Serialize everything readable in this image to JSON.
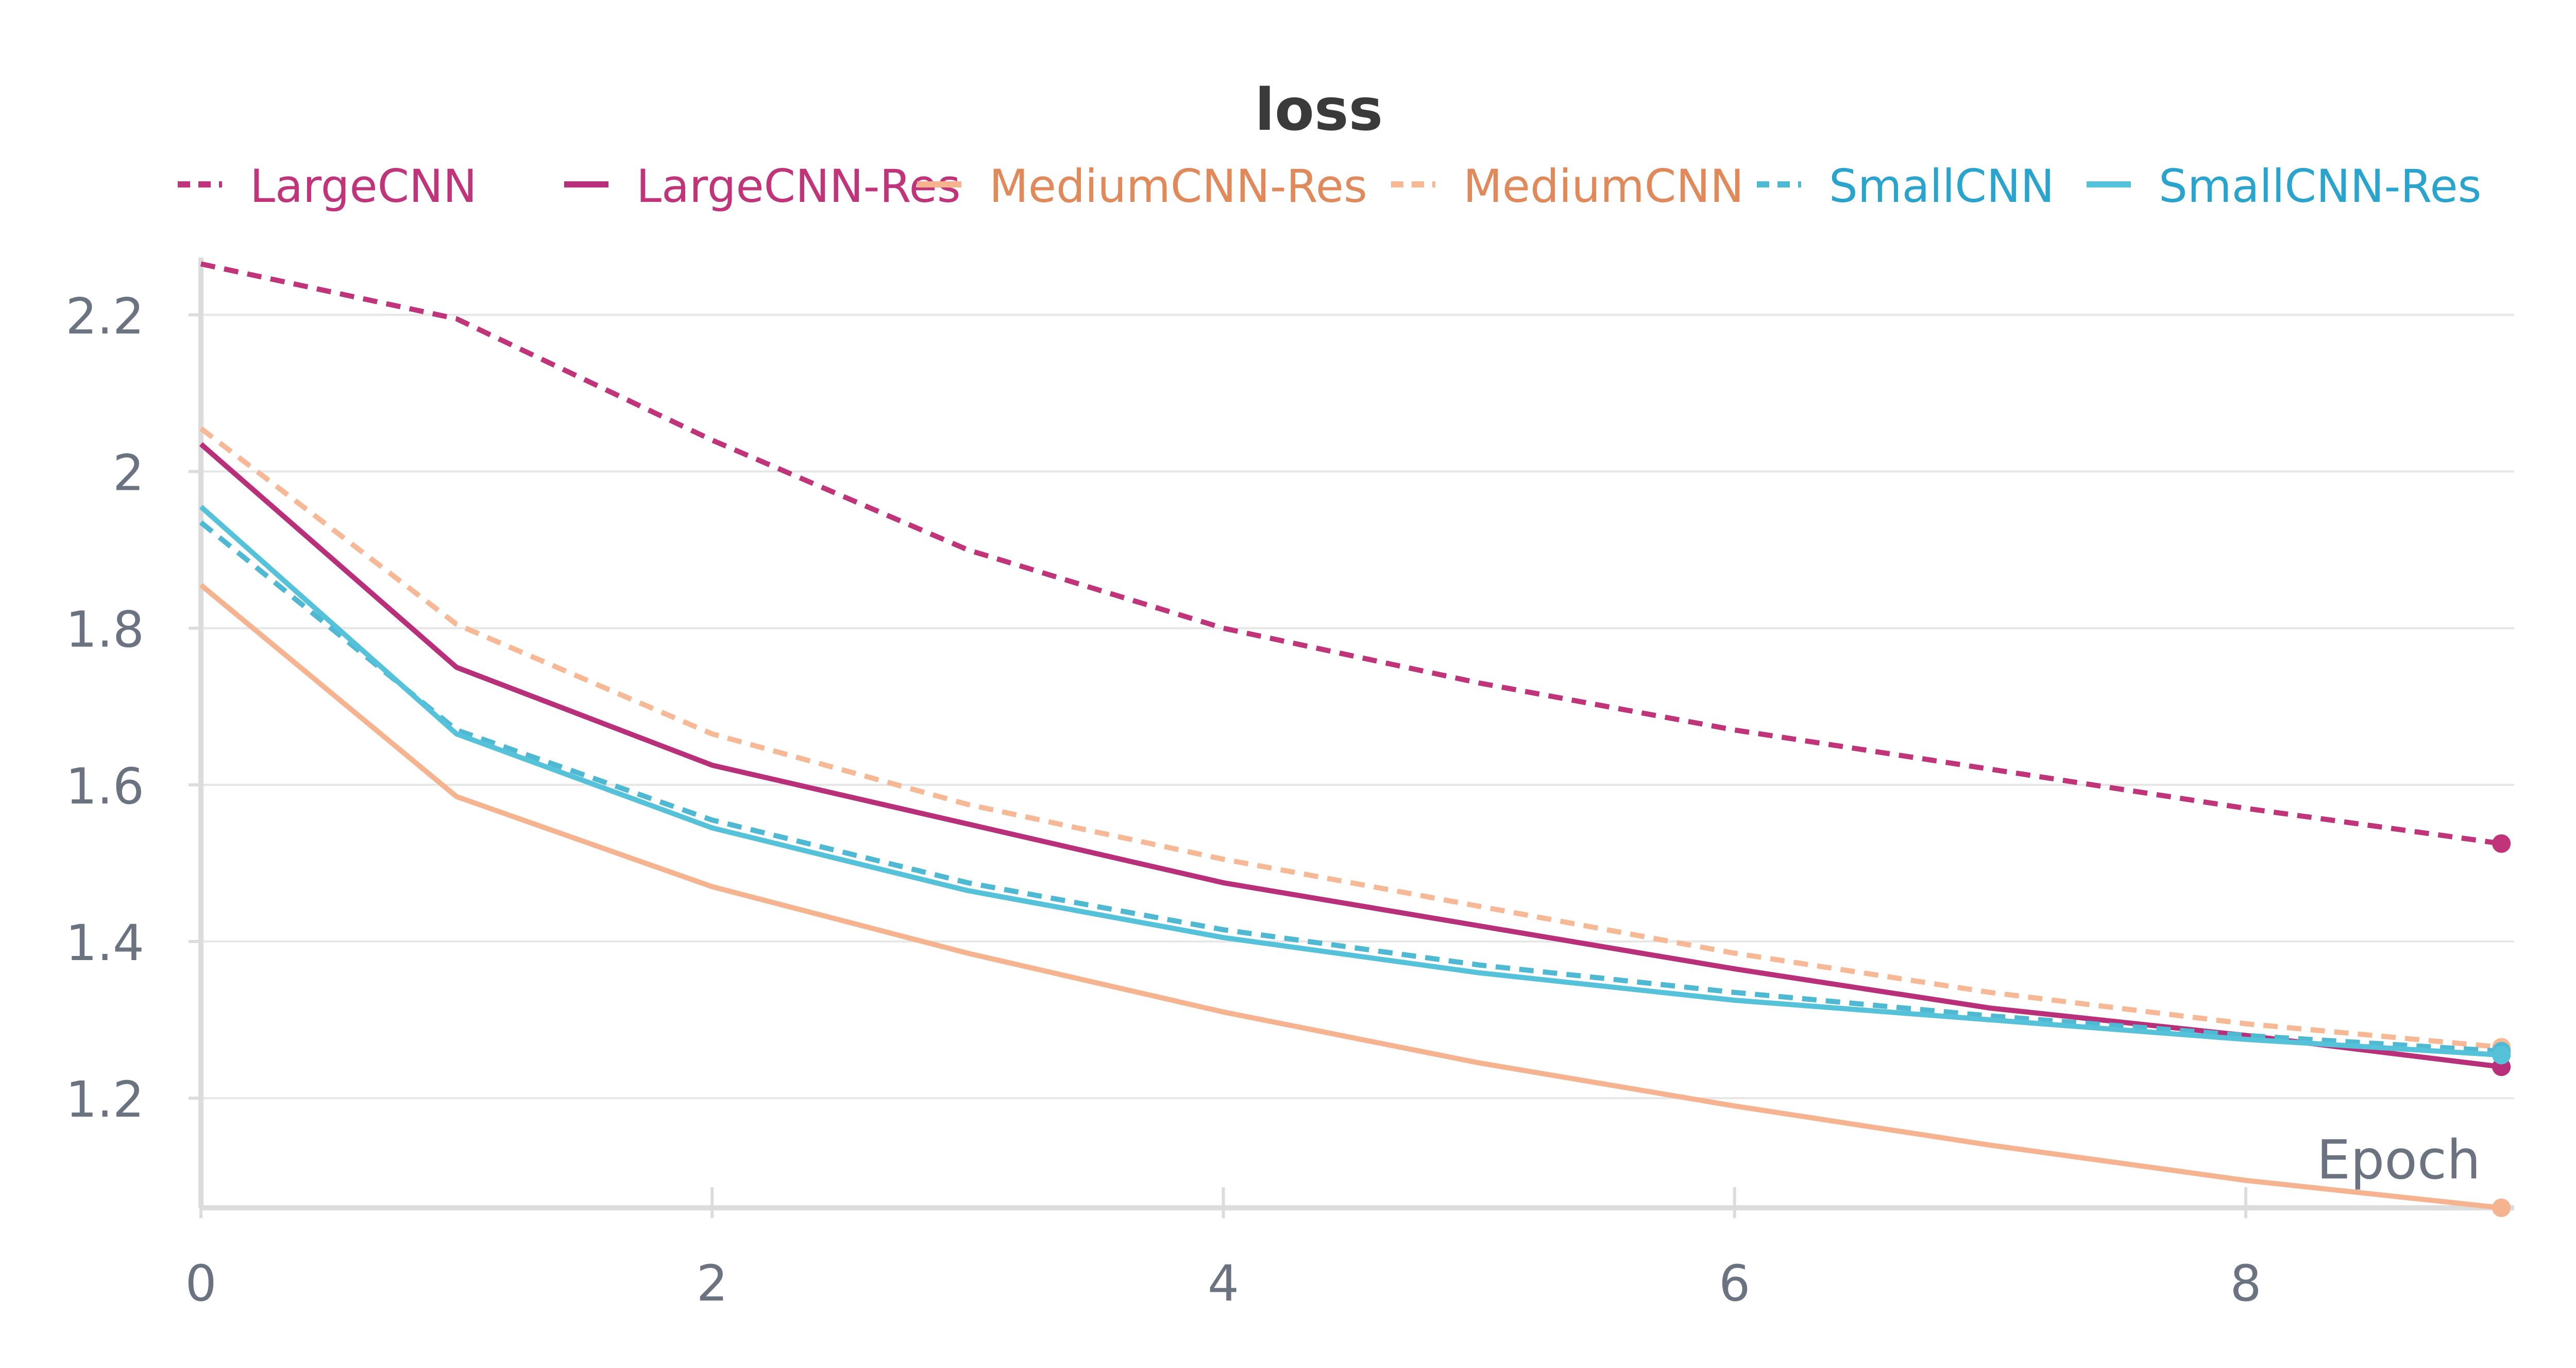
{
  "chart_data": {
    "type": "line",
    "title": "loss",
    "xlabel": "Epoch",
    "ylabel": "",
    "x": [
      0,
      1,
      2,
      3,
      4,
      5,
      6,
      7,
      8,
      9
    ],
    "xlim": [
      0,
      9.05
    ],
    "ylim": [
      1.06,
      2.26
    ],
    "x_ticks": [
      0,
      2,
      4,
      6,
      8
    ],
    "x_tick_labels": [
      "0",
      "2",
      "4",
      "6",
      "8"
    ],
    "y_ticks": [
      1.2,
      1.4,
      1.6,
      1.8,
      2.0,
      2.2
    ],
    "y_tick_labels": [
      "1.2",
      "1.4",
      "1.6",
      "1.8",
      "2",
      "2.2"
    ],
    "grid": true,
    "legend_position": "top",
    "series": [
      {
        "name": "LargeCNN",
        "color": "#c0357a",
        "dashed": true,
        "values": [
          2.265,
          2.195,
          2.04,
          1.9,
          1.8,
          1.73,
          1.67,
          1.62,
          1.57,
          1.525
        ]
      },
      {
        "name": "LargeCNN-Res",
        "color": "#b8307a",
        "dashed": false,
        "values": [
          2.035,
          1.75,
          1.625,
          1.55,
          1.475,
          1.42,
          1.365,
          1.315,
          1.28,
          1.24
        ]
      },
      {
        "name": "MediumCNN-Res",
        "color": "#f5b48f",
        "dashed": false,
        "values": [
          1.855,
          1.585,
          1.47,
          1.385,
          1.31,
          1.245,
          1.19,
          1.14,
          1.095,
          1.06
        ]
      },
      {
        "name": "MediumCNN",
        "color": "#f7b896",
        "dashed": true,
        "values": [
          2.055,
          1.805,
          1.665,
          1.575,
          1.505,
          1.445,
          1.385,
          1.335,
          1.295,
          1.265
        ]
      },
      {
        "name": "SmallCNN",
        "color": "#4fb8d2",
        "dashed": true,
        "values": [
          1.935,
          1.67,
          1.555,
          1.475,
          1.415,
          1.37,
          1.335,
          1.305,
          1.28,
          1.26
        ]
      },
      {
        "name": "SmallCNN-Res",
        "color": "#55c2da",
        "dashed": false,
        "values": [
          1.955,
          1.665,
          1.545,
          1.465,
          1.405,
          1.36,
          1.325,
          1.3,
          1.275,
          1.255
        ]
      }
    ],
    "legend_text_colors": [
      "#c0357a",
      "#c0357a",
      "#e0895a",
      "#e0895a",
      "#2aa4cc",
      "#2aa4cc"
    ]
  }
}
